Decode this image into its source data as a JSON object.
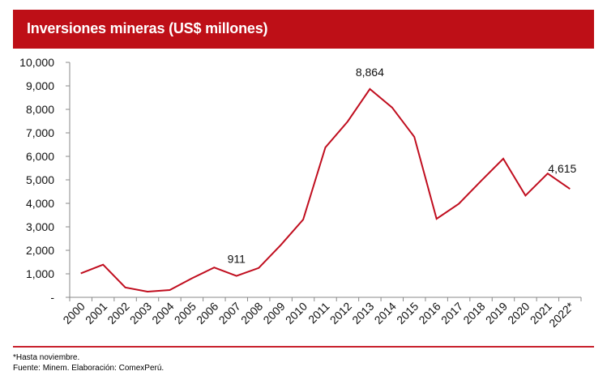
{
  "header": {
    "title": "Inversiones mineras (US$ millones)"
  },
  "colors": {
    "header_bg": "#be0f17",
    "line": "#c00d1e",
    "axis": "#888888",
    "rule": "#c8202c"
  },
  "chart_data": {
    "type": "line",
    "title": "Inversiones mineras (US$ millones)",
    "xlabel": "",
    "ylabel": "",
    "categories": [
      "2000",
      "2001",
      "2002",
      "2003",
      "2004",
      "2005",
      "2006",
      "2007",
      "2008",
      "2009",
      "2010",
      "2011",
      "2012",
      "2013",
      "2014",
      "2015",
      "2016",
      "2017",
      "2018",
      "2019",
      "2020",
      "2021",
      "2022*"
    ],
    "series": [
      {
        "name": "Inversiones mineras",
        "values": [
          1020,
          1390,
          420,
          240,
          310,
          810,
          1270,
          911,
          1250,
          2230,
          3310,
          6380,
          7480,
          8864,
          8080,
          6830,
          3340,
          3980,
          4950,
          5900,
          4330,
          5270,
          4615
        ]
      }
    ],
    "ylim": [
      0,
      10000
    ],
    "yticks": [
      0,
      1000,
      2000,
      3000,
      4000,
      5000,
      6000,
      7000,
      8000,
      9000,
      10000
    ],
    "ytick_labels": [
      "-",
      "1,000",
      "2,000",
      "3,000",
      "4,000",
      "5,000",
      "6,000",
      "7,000",
      "8,000",
      "9,000",
      "10,000"
    ],
    "annotations": [
      {
        "category": "2007",
        "text": "911"
      },
      {
        "category": "2013",
        "text": "8,864"
      },
      {
        "category": "2022*",
        "text": "4,615"
      }
    ],
    "grid": false,
    "legend": "none"
  },
  "footnotes": {
    "note": "*Hasta noviembre.",
    "source": "Fuente: Minem. Elaboración: ComexPerú."
  }
}
